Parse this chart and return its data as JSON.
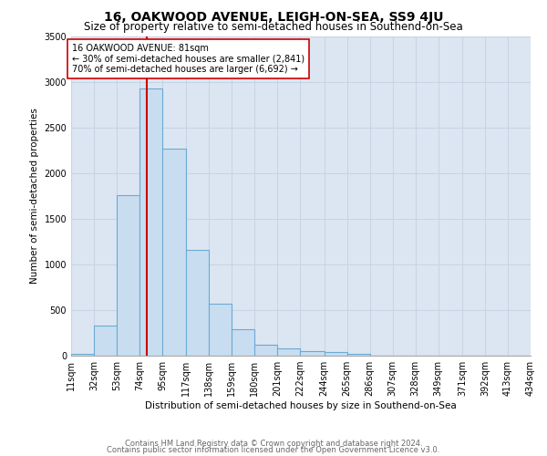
{
  "title": "16, OAKWOOD AVENUE, LEIGH-ON-SEA, SS9 4JU",
  "subtitle": "Size of property relative to semi-detached houses in Southend-on-Sea",
  "xlabel": "Distribution of semi-detached houses by size in Southend-on-Sea",
  "ylabel": "Number of semi-detached properties",
  "footnote1": "Contains HM Land Registry data © Crown copyright and database right 2024.",
  "footnote2": "Contains public sector information licensed under the Open Government Licence v3.0.",
  "property_size": 81,
  "property_label": "16 OAKWOOD AVENUE: 81sqm",
  "smaller_pct": 30,
  "smaller_count": 2841,
  "larger_pct": 70,
  "larger_count": 6692,
  "bin_edges": [
    11,
    32,
    53,
    74,
    95,
    117,
    138,
    159,
    180,
    201,
    222,
    244,
    265,
    286,
    307,
    328,
    349,
    371,
    392,
    413,
    434
  ],
  "bin_heights": [
    25,
    330,
    1760,
    2930,
    2270,
    1160,
    570,
    290,
    125,
    80,
    55,
    45,
    25,
    5,
    3,
    2,
    1,
    1,
    1,
    1
  ],
  "bar_facecolor": "#c9ddf0",
  "bar_edgecolor": "#6aaad4",
  "redline_color": "#cc0000",
  "box_facecolor": "#ffffff",
  "box_edgecolor": "#cc0000",
  "grid_color": "#c8d4e4",
  "background_color": "#dce6f2",
  "ylim": [
    0,
    3500
  ],
  "yticks": [
    0,
    500,
    1000,
    1500,
    2000,
    2500,
    3000,
    3500
  ],
  "title_fontsize": 10,
  "subtitle_fontsize": 8.5,
  "axis_label_fontsize": 7.5,
  "tick_fontsize": 7,
  "annotation_fontsize": 7,
  "footnote_fontsize": 6
}
